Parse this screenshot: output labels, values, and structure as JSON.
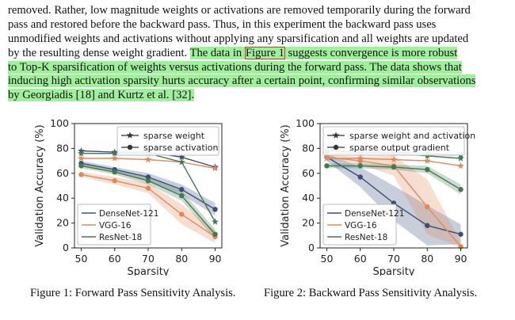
{
  "paragraph": {
    "line1": "removed. Rather, low magnitude weights or activations are removed temporarily during the forward",
    "line2": "pass and restored before the backward pass.  Thus, in this experiment the backward pass uses",
    "line3": "unmodified weights and activations without applying any sparsification and all weights are updated",
    "line4a": "by the resulting dense weight gradient. ",
    "line4b": "The data in ",
    "line4ref": "Figure 1",
    "line4c": " suggests convergence is more robust",
    "line5": "to Top-K sparsification of weights versus activations during the forward pass. The data shows that",
    "line6": "inducing high activation sparsity hurts accuracy after a certain point, confirming similar observations",
    "line7": "by Georgiadis [18] and Kurtz et al. [32]."
  },
  "figure1_caption": "Figure 1: Forward Pass Sensitivity Analysis.",
  "figure2_caption": "Figure 2: Backward Pass Sensitivity Analysis.",
  "chart_data": [
    {
      "type": "line",
      "title": "",
      "xlabel": "Sparsity",
      "ylabel": "Validation Accuracy (%)",
      "x": [
        50,
        60,
        70,
        80,
        90
      ],
      "xlim": [
        48,
        92
      ],
      "ylim": [
        0,
        100
      ],
      "xticks": [
        "50",
        "60",
        "70",
        "80",
        "90"
      ],
      "yticks": [
        "0",
        "20",
        "40",
        "60",
        "80",
        "100"
      ],
      "grid": false,
      "style_legend": {
        "placement": "top-right",
        "entries": [
          "sparse weight",
          "sparse activation"
        ]
      },
      "model_legend": {
        "placement": "bottom-left",
        "entries": [
          "DenseNet-121",
          "VGG-16",
          "ResNet-18"
        ]
      },
      "series": [
        {
          "model": "DenseNet-121",
          "kind": "weight",
          "marker": "star",
          "color": "#3b4e7a",
          "values": [
            78,
            77,
            77,
            73,
            65
          ]
        },
        {
          "model": "DenseNet-121",
          "kind": "activation",
          "marker": "circle",
          "color": "#3b4e7a",
          "values": [
            68,
            63,
            57,
            47,
            31
          ],
          "band": [
            2,
            2,
            3,
            4,
            5
          ]
        },
        {
          "model": "VGG-16",
          "kind": "weight",
          "marker": "star",
          "color": "#e08a5a",
          "values": [
            72,
            72,
            71,
            69,
            64
          ]
        },
        {
          "model": "VGG-16",
          "kind": "activation",
          "marker": "circle",
          "color": "#e08a5a",
          "values": [
            59,
            54,
            48,
            27,
            9
          ],
          "band": [
            2,
            3,
            4,
            8,
            5
          ]
        },
        {
          "model": "ResNet-18",
          "kind": "weight",
          "marker": "star",
          "color": "#3f7a52",
          "values": [
            76,
            76,
            76,
            69,
            21
          ]
        },
        {
          "model": "ResNet-18",
          "kind": "activation",
          "marker": "circle",
          "color": "#3f7a52",
          "values": [
            66,
            61,
            54,
            42,
            11
          ],
          "band": [
            2,
            2,
            3,
            4,
            4
          ]
        }
      ]
    },
    {
      "type": "line",
      "title": "",
      "xlabel": "Sparsity",
      "ylabel": "Validation Accuracy (%)",
      "x": [
        50,
        60,
        70,
        80,
        90
      ],
      "xlim": [
        48,
        92
      ],
      "ylim": [
        0,
        100
      ],
      "xticks": [
        "50",
        "60",
        "70",
        "80",
        "90"
      ],
      "yticks": [
        "0",
        "20",
        "40",
        "60",
        "80",
        "100"
      ],
      "grid": false,
      "style_legend": {
        "placement": "top-right",
        "entries": [
          "sparse weight and activation",
          "sparse output gradient"
        ]
      },
      "model_legend": {
        "placement": "bottom-left",
        "entries": [
          "DenseNet-121",
          "VGG-16",
          "ResNet-18"
        ]
      },
      "series": [
        {
          "model": "DenseNet-121",
          "kind": "weight_activation",
          "marker": "star",
          "color": "#3b4e7a",
          "values": [
            78,
            77,
            77,
            76,
            75
          ]
        },
        {
          "model": "DenseNet-121",
          "kind": "gradient",
          "marker": "circle",
          "color": "#3b4e7a",
          "values": [
            73,
            57,
            36,
            18,
            11
          ],
          "band": [
            3,
            8,
            14,
            16,
            8
          ]
        },
        {
          "model": "VGG-16",
          "kind": "weight_activation",
          "marker": "star",
          "color": "#e08a5a",
          "values": [
            72,
            72,
            71,
            70,
            66
          ]
        },
        {
          "model": "VGG-16",
          "kind": "gradient",
          "marker": "circle",
          "color": "#e08a5a",
          "values": [
            73,
            70,
            66,
            33,
            1
          ],
          "band": [
            2,
            3,
            8,
            22,
            4
          ]
        },
        {
          "model": "ResNet-18",
          "kind": "weight_activation",
          "marker": "star",
          "color": "#3f7a52",
          "values": [
            76,
            76,
            76,
            74,
            72
          ]
        },
        {
          "model": "ResNet-18",
          "kind": "gradient",
          "marker": "circle",
          "color": "#3f7a52",
          "values": [
            66,
            66,
            65,
            63,
            47
          ],
          "band": [
            2,
            2,
            2,
            3,
            4
          ]
        }
      ]
    }
  ]
}
